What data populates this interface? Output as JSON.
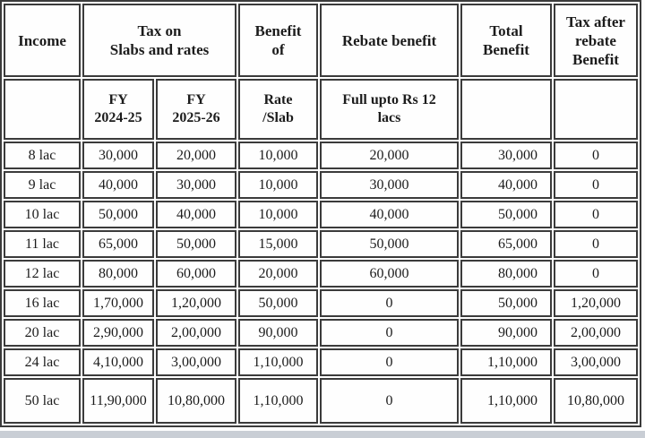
{
  "colors": {
    "border": "#3b3b3b",
    "text": "#1c1c1c",
    "cell_background": "#fefefe",
    "bottom_strip": "#c9ced5"
  },
  "table": {
    "header_row1": [
      {
        "lines": [
          "Income"
        ]
      },
      {
        "lines": [
          "Tax on",
          "Slabs and rates"
        ]
      },
      {
        "lines": [
          "Benefit",
          "of"
        ]
      },
      {
        "lines": [
          "Rebate benefit"
        ]
      },
      {
        "lines": [
          "Total",
          "Benefit"
        ]
      },
      {
        "lines": [
          "Tax after",
          "rebate",
          "Benefit"
        ]
      }
    ],
    "header_row2": [
      {
        "lines": []
      },
      {
        "lines": [
          "FY",
          "2024-25"
        ]
      },
      {
        "lines": [
          "FY",
          "2025-26"
        ]
      },
      {
        "lines": [
          "Rate",
          "/Slab"
        ]
      },
      {
        "lines": [
          "Full upto Rs 12",
          "lacs"
        ]
      },
      {
        "lines": []
      },
      {
        "lines": []
      }
    ],
    "col_names": [
      "cell-income",
      "cell-tax-fy-2024-25",
      "cell-tax-fy-2025-26",
      "cell-benefit-rate-slab",
      "cell-rebate-benefit",
      "cell-total-benefit",
      "cell-tax-after-rebate"
    ],
    "rows": [
      [
        "8 lac",
        "30,000",
        "20,000",
        "10,000",
        "20,000",
        "30,000",
        "0"
      ],
      [
        "9 lac",
        "40,000",
        "30,000",
        "10,000",
        "30,000",
        "40,000",
        "0"
      ],
      [
        "10 lac",
        "50,000",
        "40,000",
        "10,000",
        "40,000",
        "50,000",
        "0"
      ],
      [
        "11 lac",
        "65,000",
        "50,000",
        "15,000",
        "50,000",
        "65,000",
        "0"
      ],
      [
        "12 lac",
        "80,000",
        "60,000",
        "20,000",
        "60,000",
        "80,000",
        "0"
      ],
      [
        "16 lac",
        "1,70,000",
        "1,20,000",
        "50,000",
        "0",
        "50,000",
        "1,20,000"
      ],
      [
        "20 lac",
        "2,90,000",
        "2,00,000",
        "90,000",
        "0",
        "90,000",
        "2,00,000"
      ],
      [
        "24 lac",
        "4,10,000",
        "3,00,000",
        "1,10,000",
        "0",
        "1,10,000",
        "3,00,000"
      ],
      [
        "50 lac",
        "11,90,000",
        "10,80,000",
        "1,10,000",
        "0",
        "1,10,000",
        "10,80,000"
      ]
    ]
  },
  "chart_data": {
    "type": "table",
    "columns": [
      "Income",
      "Tax on Slabs and rates FY 2024-25",
      "Tax on Slabs and rates FY 2025-26",
      "Benefit of Rate/Slab",
      "Rebate benefit (Full upto Rs 12 lacs)",
      "Total Benefit",
      "Tax after rebate Benefit"
    ],
    "rows": [
      [
        "8 lac",
        30000,
        20000,
        10000,
        20000,
        30000,
        0
      ],
      [
        "9 lac",
        40000,
        30000,
        10000,
        30000,
        40000,
        0
      ],
      [
        "10 lac",
        50000,
        40000,
        10000,
        40000,
        50000,
        0
      ],
      [
        "11 lac",
        65000,
        50000,
        15000,
        50000,
        65000,
        0
      ],
      [
        "12 lac",
        80000,
        60000,
        20000,
        60000,
        80000,
        0
      ],
      [
        "16 lac",
        170000,
        120000,
        50000,
        0,
        50000,
        120000
      ],
      [
        "20 lac",
        290000,
        200000,
        90000,
        0,
        90000,
        200000
      ],
      [
        "24 lac",
        410000,
        300000,
        110000,
        0,
        110000,
        300000
      ],
      [
        "50 lac",
        1190000,
        1080000,
        110000,
        0,
        110000,
        1080000
      ]
    ]
  }
}
